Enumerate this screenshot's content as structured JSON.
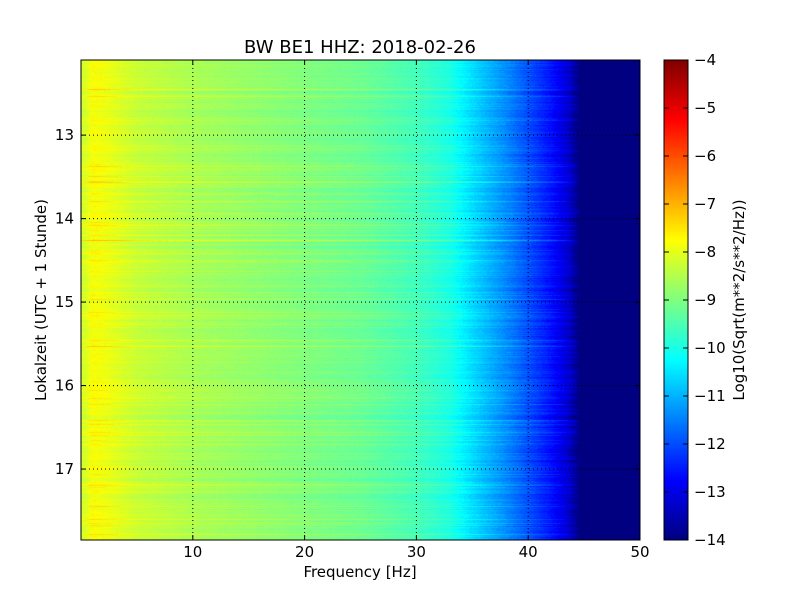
{
  "chart_data": {
    "type": "heatmap",
    "title": "BW BE1 HHZ: 2018-02-26",
    "xlabel": "Frequency [Hz]",
    "ylabel": "Lokalzeit (UTC + 1 Stunde)",
    "xlim": [
      0,
      50
    ],
    "ylim": [
      12.1,
      17.85
    ],
    "y_inverted": true,
    "xticks": [
      10,
      20,
      30,
      40,
      50
    ],
    "yticks": [
      13,
      14,
      15,
      16,
      17
    ],
    "grid": true,
    "colormap": "jet",
    "colorbar": {
      "label": "Log10(Sqrt(m**2/s**2/Hz))",
      "range": [
        -14,
        -4
      ],
      "ticks": [
        -4,
        -5,
        -6,
        -7,
        -8,
        -9,
        -10,
        -11,
        -12,
        -13,
        -14
      ]
    },
    "frequency_profile": {
      "frequency_hz": [
        0.2,
        1,
        2,
        5,
        10,
        15,
        20,
        25,
        30,
        33,
        35,
        38,
        40,
        42,
        43.5,
        44.5,
        50
      ],
      "level_log10": [
        -8.2,
        -7.8,
        -7.9,
        -8.3,
        -8.6,
        -8.8,
        -9.0,
        -9.2,
        -9.6,
        -10.0,
        -10.6,
        -11.4,
        -12.0,
        -12.6,
        -13.2,
        -14.0,
        -14.0
      ]
    },
    "notable_rows": [
      {
        "time_h": 13.55,
        "level_offset": 0.5
      },
      {
        "time_h": 12.45,
        "level_offset": 0.3
      },
      {
        "time_h": 14.25,
        "level_offset": 0.3
      },
      {
        "time_h": 15.15,
        "level_offset": 0.2
      }
    ]
  },
  "colors": {
    "jet_stops": [
      "#00007f",
      "#0000ff",
      "#007fff",
      "#00ffff",
      "#7fff7f",
      "#ffff00",
      "#ff7f00",
      "#ff0000",
      "#7f0000"
    ]
  }
}
